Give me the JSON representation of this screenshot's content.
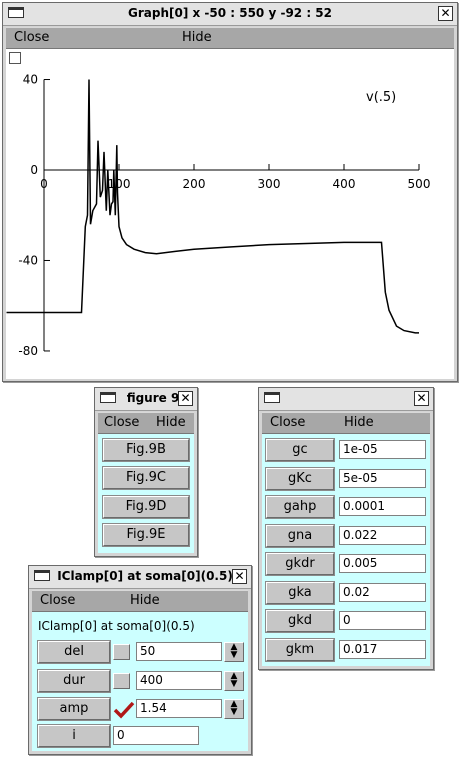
{
  "graph": {
    "title": "Graph[0]  x -50 : 550  y -92 : 52",
    "menu": {
      "close": "Close",
      "hide": "Hide"
    },
    "series_label": "v(.5)"
  },
  "chart_data": {
    "type": "line",
    "x_ticks": [
      "0",
      "100",
      "200",
      "300",
      "400",
      "500"
    ],
    "y_ticks": [
      "40",
      "0",
      "-40",
      "-80"
    ],
    "xlim": [
      -50,
      550
    ],
    "ylim": [
      -92,
      52
    ],
    "series": [
      {
        "name": "v(.5)",
        "x": [
          -50,
          0,
          50,
          55,
          58,
          60,
          62,
          65,
          70,
          72,
          75,
          78,
          80,
          83,
          85,
          88,
          90,
          92,
          93,
          95,
          97,
          98,
          100,
          104,
          110,
          120,
          135,
          150,
          175,
          200,
          250,
          300,
          350,
          400,
          448,
          450,
          455,
          460,
          470,
          480,
          495,
          500
        ],
        "y": [
          -63,
          -63,
          -63,
          -25,
          -20,
          40,
          -24,
          -18,
          -15,
          13,
          -12,
          -9,
          8,
          -18,
          0,
          -20,
          -15,
          -14,
          0,
          -20,
          11,
          -10,
          -25,
          -30,
          -33,
          -35,
          -36.5,
          -37,
          -36,
          -35,
          -34,
          -33,
          -32.5,
          -32,
          -32,
          -32,
          -54,
          -62,
          -69,
          -71,
          -72,
          -72
        ]
      }
    ]
  },
  "figure9": {
    "title": "figure 9",
    "menu": {
      "close": "Close",
      "hide": "Hide"
    },
    "buttons": [
      "Fig.9B",
      "Fig.9C",
      "Fig.9D",
      "Fig.9E"
    ]
  },
  "params": {
    "menu": {
      "close": "Close",
      "hide": "Hide"
    },
    "rows": [
      {
        "label": "gc",
        "value": "1e-05"
      },
      {
        "label": "gKc",
        "value": "5e-05"
      },
      {
        "label": "gahp",
        "value": "0.0001"
      },
      {
        "label": "gna",
        "value": "0.022"
      },
      {
        "label": "gkdr",
        "value": "0.005"
      },
      {
        "label": "gka",
        "value": "0.02"
      },
      {
        "label": "gkd",
        "value": "0"
      },
      {
        "label": "gkm",
        "value": "0.017"
      }
    ]
  },
  "iclamp": {
    "title": "IClamp[0] at soma[0](0.5)",
    "menu": {
      "close": "Close",
      "hide": "Hide"
    },
    "heading": "IClamp[0] at soma[0](0.5)",
    "rows": [
      {
        "label": "del",
        "value": "50",
        "checked": false
      },
      {
        "label": "dur",
        "value": "400",
        "checked": false
      },
      {
        "label": "amp",
        "value": "1.54",
        "checked": true
      }
    ],
    "i_label": "i",
    "i_value": "0",
    "check_color": "#b01818"
  }
}
